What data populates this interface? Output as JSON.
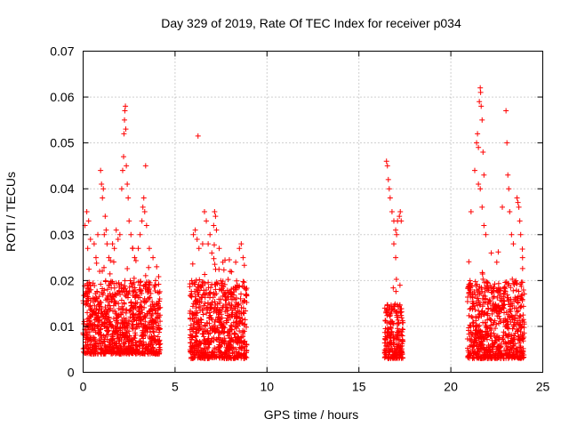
{
  "chart_data": {
    "type": "scatter",
    "title": "Day 329 of 2019, Rate Of TEC Index for receiver p034",
    "xlabel": "GPS time / hours",
    "ylabel": "ROTI / TECUs",
    "xlim": [
      0,
      25
    ],
    "ylim": [
      0,
      0.07
    ],
    "x_ticks": [
      0,
      5,
      10,
      15,
      20,
      25
    ],
    "y_ticks": [
      0,
      0.01,
      0.02,
      0.03,
      0.04,
      0.05,
      0.06,
      0.07
    ],
    "x_tick_labels": [
      "0",
      "5",
      "10",
      "15",
      "20",
      "25"
    ],
    "y_tick_labels": [
      "0",
      "0.01",
      "0.02",
      "0.03",
      "0.04",
      "0.05",
      "0.06",
      "0.07"
    ],
    "grid": true,
    "marker": "plus",
    "color": "#ff0000",
    "series": [
      {
        "name": "ROTI",
        "clusters": [
          {
            "x_range": [
              0.0,
              4.2
            ],
            "typical": [
              0.004,
              0.02
            ]
          },
          {
            "x_range": [
              5.8,
              8.9
            ],
            "typical": [
              0.003,
              0.02
            ]
          },
          {
            "x_range": [
              16.4,
              17.4
            ],
            "typical": [
              0.003,
              0.015
            ]
          },
          {
            "x_range": [
              20.9,
              24.0
            ],
            "typical": [
              0.003,
              0.02
            ]
          }
        ],
        "points": [
          [
            0.1,
            0.032
          ],
          [
            0.2,
            0.035
          ],
          [
            0.25,
            0.027
          ],
          [
            0.3,
            0.033
          ],
          [
            0.4,
            0.029
          ],
          [
            0.6,
            0.028
          ],
          [
            0.7,
            0.025
          ],
          [
            0.8,
            0.03
          ],
          [
            0.9,
            0.022
          ],
          [
            0.95,
            0.044
          ],
          [
            1.0,
            0.041
          ],
          [
            1.05,
            0.038
          ],
          [
            1.1,
            0.04
          ],
          [
            1.15,
            0.03
          ],
          [
            1.2,
            0.034
          ],
          [
            1.25,
            0.031
          ],
          [
            1.3,
            0.028
          ],
          [
            1.4,
            0.025
          ],
          [
            1.6,
            0.028
          ],
          [
            1.7,
            0.027
          ],
          [
            1.8,
            0.031
          ],
          [
            1.9,
            0.029
          ],
          [
            2.0,
            0.03
          ],
          [
            2.1,
            0.04
          ],
          [
            2.15,
            0.044
          ],
          [
            2.2,
            0.047
          ],
          [
            2.22,
            0.052
          ],
          [
            2.25,
            0.055
          ],
          [
            2.27,
            0.057
          ],
          [
            2.3,
            0.058
          ],
          [
            2.32,
            0.053
          ],
          [
            2.35,
            0.045
          ],
          [
            2.4,
            0.041
          ],
          [
            2.45,
            0.038
          ],
          [
            2.5,
            0.033
          ],
          [
            2.6,
            0.03
          ],
          [
            2.7,
            0.027
          ],
          [
            2.8,
            0.025
          ],
          [
            3.0,
            0.027
          ],
          [
            3.1,
            0.03
          ],
          [
            3.2,
            0.033
          ],
          [
            3.25,
            0.036
          ],
          [
            3.3,
            0.038
          ],
          [
            3.35,
            0.035
          ],
          [
            3.4,
            0.045
          ],
          [
            3.45,
            0.032
          ],
          [
            3.6,
            0.027
          ],
          [
            3.8,
            0.025
          ],
          [
            4.0,
            0.023
          ],
          [
            6.0,
            0.03
          ],
          [
            6.1,
            0.031
          ],
          [
            6.2,
            0.029
          ],
          [
            6.25,
            0.0515
          ],
          [
            6.3,
            0.027
          ],
          [
            6.5,
            0.028
          ],
          [
            6.6,
            0.035
          ],
          [
            6.7,
            0.033
          ],
          [
            6.8,
            0.028
          ],
          [
            6.9,
            0.03
          ],
          [
            7.0,
            0.026
          ],
          [
            7.1,
            0.032
          ],
          [
            7.15,
            0.035
          ],
          [
            7.2,
            0.034
          ],
          [
            7.25,
            0.031
          ],
          [
            7.4,
            0.027
          ],
          [
            7.6,
            0.024
          ],
          [
            8.0,
            0.022
          ],
          [
            8.3,
            0.024
          ],
          [
            8.5,
            0.027
          ],
          [
            8.6,
            0.028
          ],
          [
            8.7,
            0.025
          ],
          [
            16.5,
            0.046
          ],
          [
            16.55,
            0.045
          ],
          [
            16.6,
            0.042
          ],
          [
            16.65,
            0.04
          ],
          [
            16.7,
            0.038
          ],
          [
            16.8,
            0.035
          ],
          [
            16.9,
            0.033
          ],
          [
            17.0,
            0.031
          ],
          [
            17.05,
            0.03
          ],
          [
            17.1,
            0.033
          ],
          [
            17.2,
            0.034
          ],
          [
            17.25,
            0.035
          ],
          [
            17.3,
            0.033
          ],
          [
            16.9,
            0.028
          ],
          [
            17.0,
            0.025
          ],
          [
            21.1,
            0.035
          ],
          [
            21.3,
            0.044
          ],
          [
            21.4,
            0.05
          ],
          [
            21.45,
            0.052
          ],
          [
            21.5,
            0.049
          ],
          [
            21.55,
            0.059
          ],
          [
            21.6,
            0.062
          ],
          [
            21.62,
            0.061
          ],
          [
            21.65,
            0.058
          ],
          [
            21.7,
            0.055
          ],
          [
            21.75,
            0.048
          ],
          [
            21.8,
            0.043
          ],
          [
            21.5,
            0.041
          ],
          [
            21.6,
            0.04
          ],
          [
            21.7,
            0.036
          ],
          [
            21.8,
            0.032
          ],
          [
            21.9,
            0.03
          ],
          [
            22.2,
            0.026
          ],
          [
            22.5,
            0.024
          ],
          [
            22.8,
            0.036
          ],
          [
            23.0,
            0.057
          ],
          [
            23.05,
            0.05
          ],
          [
            23.1,
            0.043
          ],
          [
            23.15,
            0.04
          ],
          [
            23.2,
            0.035
          ],
          [
            23.3,
            0.03
          ],
          [
            23.4,
            0.028
          ],
          [
            23.6,
            0.038
          ],
          [
            23.65,
            0.037
          ],
          [
            23.7,
            0.036
          ],
          [
            23.75,
            0.033
          ],
          [
            23.8,
            0.03
          ],
          [
            23.9,
            0.025
          ]
        ]
      }
    ]
  }
}
